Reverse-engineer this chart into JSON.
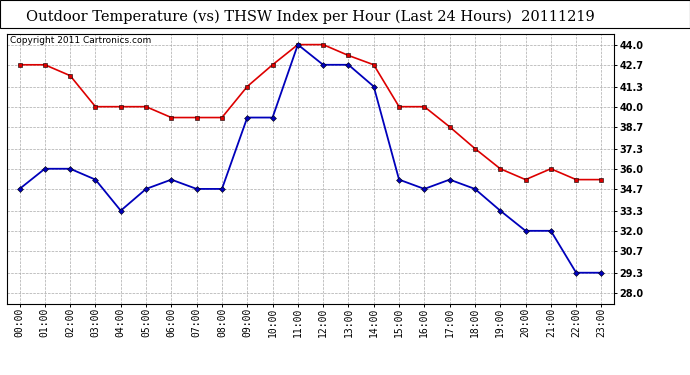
{
  "title": "Outdoor Temperature (vs) THSW Index per Hour (Last 24 Hours)  20111219",
  "copyright": "Copyright 2011 Cartronics.com",
  "hours": [
    "00:00",
    "01:00",
    "02:00",
    "03:00",
    "04:00",
    "05:00",
    "06:00",
    "07:00",
    "08:00",
    "09:00",
    "10:00",
    "11:00",
    "12:00",
    "13:00",
    "14:00",
    "15:00",
    "16:00",
    "17:00",
    "18:00",
    "19:00",
    "20:00",
    "21:00",
    "22:00",
    "23:00"
  ],
  "temp_red": [
    42.7,
    42.7,
    42.0,
    40.0,
    40.0,
    40.0,
    39.3,
    39.3,
    39.3,
    41.3,
    42.7,
    44.0,
    44.0,
    43.3,
    42.7,
    40.0,
    40.0,
    38.7,
    37.3,
    36.0,
    35.3,
    36.0,
    35.3,
    35.3
  ],
  "thsw_blue": [
    34.7,
    36.0,
    36.0,
    35.3,
    33.3,
    34.7,
    35.3,
    34.7,
    34.7,
    39.3,
    39.3,
    44.0,
    42.7,
    42.7,
    41.3,
    35.3,
    34.7,
    35.3,
    34.7,
    33.3,
    32.0,
    32.0,
    29.3,
    29.3
  ],
  "ylim_min": 27.3,
  "ylim_max": 44.7,
  "yticks": [
    28.0,
    29.3,
    30.7,
    32.0,
    33.3,
    34.7,
    36.0,
    37.3,
    38.7,
    40.0,
    41.3,
    42.7,
    44.0
  ],
  "red_color": "#dd0000",
  "blue_color": "#0000bb",
  "bg_color": "#ffffff",
  "grid_color": "#aaaaaa",
  "title_fontsize": 10.5,
  "tick_fontsize": 7.0,
  "copyright_fontsize": 6.5
}
